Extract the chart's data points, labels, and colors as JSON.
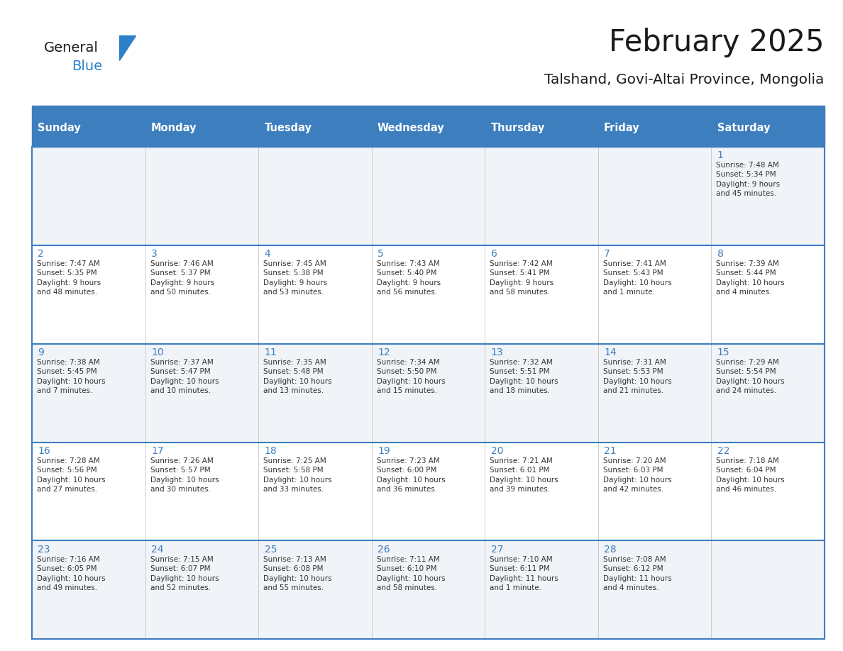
{
  "title": "February 2025",
  "subtitle": "Talshand, Govi-Altai Province, Mongolia",
  "days_of_week": [
    "Sunday",
    "Monday",
    "Tuesday",
    "Wednesday",
    "Thursday",
    "Friday",
    "Saturday"
  ],
  "header_bg": "#3d7ebf",
  "header_text": "#ffffff",
  "cell_bg_light": "#f0f3f7",
  "cell_bg_white": "#ffffff",
  "line_color": "#3d7ebf",
  "day_number_color": "#3d7ebf",
  "text_color": "#333333",
  "logo_black": "#1a1a1a",
  "logo_blue": "#2e80c8",
  "calendar_data": [
    [
      null,
      null,
      null,
      null,
      null,
      null,
      1
    ],
    [
      2,
      3,
      4,
      5,
      6,
      7,
      8
    ],
    [
      9,
      10,
      11,
      12,
      13,
      14,
      15
    ],
    [
      16,
      17,
      18,
      19,
      20,
      21,
      22
    ],
    [
      23,
      24,
      25,
      26,
      27,
      28,
      null
    ]
  ],
  "sunrise_data": {
    "1": "7:48 AM",
    "2": "7:47 AM",
    "3": "7:46 AM",
    "4": "7:45 AM",
    "5": "7:43 AM",
    "6": "7:42 AM",
    "7": "7:41 AM",
    "8": "7:39 AM",
    "9": "7:38 AM",
    "10": "7:37 AM",
    "11": "7:35 AM",
    "12": "7:34 AM",
    "13": "7:32 AM",
    "14": "7:31 AM",
    "15": "7:29 AM",
    "16": "7:28 AM",
    "17": "7:26 AM",
    "18": "7:25 AM",
    "19": "7:23 AM",
    "20": "7:21 AM",
    "21": "7:20 AM",
    "22": "7:18 AM",
    "23": "7:16 AM",
    "24": "7:15 AM",
    "25": "7:13 AM",
    "26": "7:11 AM",
    "27": "7:10 AM",
    "28": "7:08 AM"
  },
  "sunset_data": {
    "1": "5:34 PM",
    "2": "5:35 PM",
    "3": "5:37 PM",
    "4": "5:38 PM",
    "5": "5:40 PM",
    "6": "5:41 PM",
    "7": "5:43 PM",
    "8": "5:44 PM",
    "9": "5:45 PM",
    "10": "5:47 PM",
    "11": "5:48 PM",
    "12": "5:50 PM",
    "13": "5:51 PM",
    "14": "5:53 PM",
    "15": "5:54 PM",
    "16": "5:56 PM",
    "17": "5:57 PM",
    "18": "5:58 PM",
    "19": "6:00 PM",
    "20": "6:01 PM",
    "21": "6:03 PM",
    "22": "6:04 PM",
    "23": "6:05 PM",
    "24": "6:07 PM",
    "25": "6:08 PM",
    "26": "6:10 PM",
    "27": "6:11 PM",
    "28": "6:12 PM"
  },
  "daylight_data": {
    "1": "9 hours\nand 45 minutes.",
    "2": "9 hours\nand 48 minutes.",
    "3": "9 hours\nand 50 minutes.",
    "4": "9 hours\nand 53 minutes.",
    "5": "9 hours\nand 56 minutes.",
    "6": "9 hours\nand 58 minutes.",
    "7": "10 hours\nand 1 minute.",
    "8": "10 hours\nand 4 minutes.",
    "9": "10 hours\nand 7 minutes.",
    "10": "10 hours\nand 10 minutes.",
    "11": "10 hours\nand 13 minutes.",
    "12": "10 hours\nand 15 minutes.",
    "13": "10 hours\nand 18 minutes.",
    "14": "10 hours\nand 21 minutes.",
    "15": "10 hours\nand 24 minutes.",
    "16": "10 hours\nand 27 minutes.",
    "17": "10 hours\nand 30 minutes.",
    "18": "10 hours\nand 33 minutes.",
    "19": "10 hours\nand 36 minutes.",
    "20": "10 hours\nand 39 minutes.",
    "21": "10 hours\nand 42 minutes.",
    "22": "10 hours\nand 46 minutes.",
    "23": "10 hours\nand 49 minutes.",
    "24": "10 hours\nand 52 minutes.",
    "25": "10 hours\nand 55 minutes.",
    "26": "10 hours\nand 58 minutes.",
    "27": "11 hours\nand 1 minute.",
    "28": "11 hours\nand 4 minutes."
  }
}
